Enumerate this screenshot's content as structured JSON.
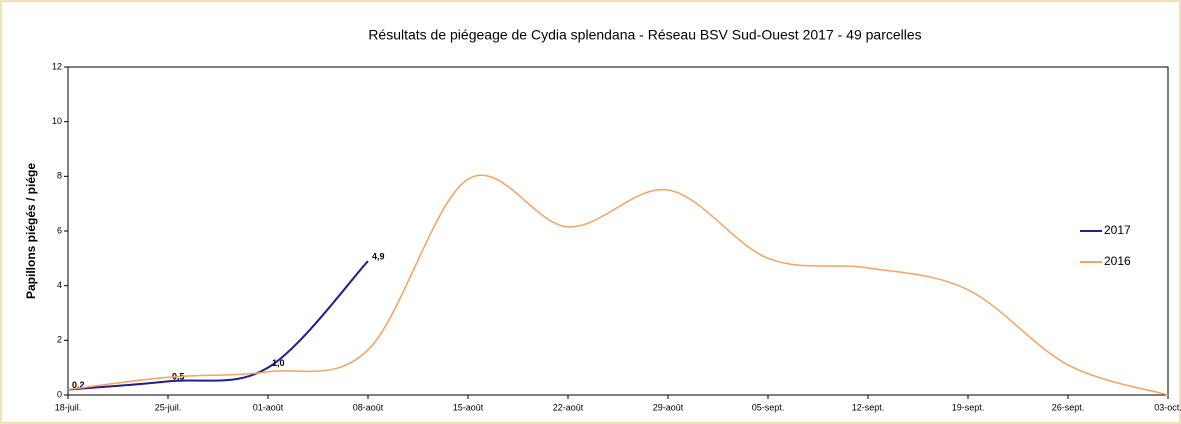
{
  "chart_data": {
    "type": "line",
    "title": "Résultats de piégeage de Cydia splendana - Réseau BSV Sud-Ouest 2017 - 49 parcelles",
    "y_label": "Papillons piégés / piége",
    "categories": [
      "18-juil.",
      "25-juil.",
      "01-août",
      "08-août",
      "15-août",
      "22-août",
      "29-août",
      "05-sept.",
      "12-sept.",
      "19-sept.",
      "26-sept.",
      "03-oct."
    ],
    "series": [
      {
        "name": "2017",
        "color": "#1f1f8f",
        "values": [
          0.2,
          0.5,
          1.0,
          4.9,
          null,
          null,
          null,
          null,
          null,
          null,
          null,
          null
        ],
        "value_labels": [
          "0,2",
          "0,5",
          "1,0",
          "4,9",
          null,
          null,
          null,
          null,
          null,
          null,
          null,
          null
        ]
      },
      {
        "name": "2016",
        "color": "#f4a460",
        "values": [
          0.2,
          0.65,
          0.85,
          1.65,
          7.9,
          6.15,
          7.5,
          5.0,
          4.65,
          3.85,
          1.1,
          0.0
        ]
      }
    ],
    "ylim": [
      0,
      12
    ],
    "yticks": [
      0,
      2,
      4,
      6,
      8,
      10,
      12
    ],
    "legend": "right",
    "grid": false
  }
}
